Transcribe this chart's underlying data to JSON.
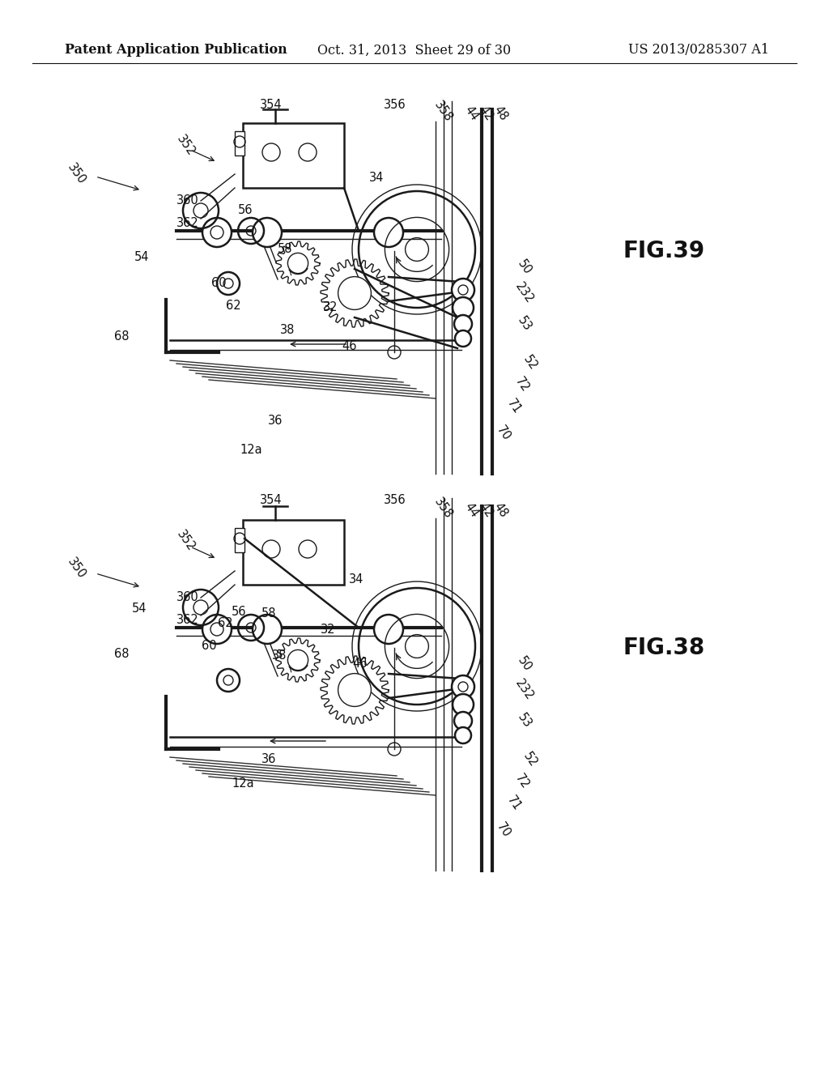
{
  "background_color": "#ffffff",
  "header_left": "Patent Application Publication",
  "header_center": "Oct. 31, 2013  Sheet 29 of 30",
  "header_right": "US 2013/0285307 A1",
  "fig39_label": "FIG.39",
  "fig38_label": "FIG.38",
  "line_color": "#1a1a1a",
  "text_color": "#111111",
  "header_fontsize": 11.5,
  "label_fontsize": 20,
  "ref_fontsize": 11
}
